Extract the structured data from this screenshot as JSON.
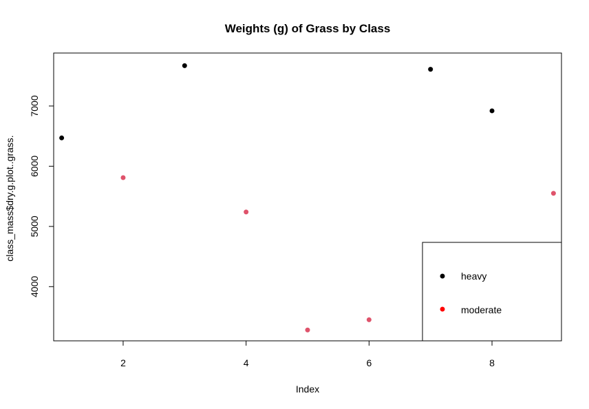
{
  "chart_data": {
    "type": "scatter",
    "title": "Weights (g) of Grass by Class",
    "xlabel": "Index",
    "ylabel": "class_mass$dry.g.plot..grass.",
    "xlim": [
      0.87,
      9.13
    ],
    "ylim": [
      3100,
      7880
    ],
    "x_ticks": [
      "2",
      "4",
      "6",
      "8"
    ],
    "y_ticks": [
      "4000",
      "5000",
      "6000",
      "7000"
    ],
    "series": [
      {
        "name": "heavy",
        "color": "#000000",
        "x": [
          1,
          3,
          7,
          8
        ],
        "y": [
          6470,
          7670,
          7610,
          6920
        ]
      },
      {
        "name": "moderate",
        "color": "#DF536B",
        "x": [
          2,
          4,
          5,
          6,
          9
        ],
        "y": [
          5810,
          5240,
          3280,
          3450,
          5550
        ]
      }
    ],
    "legend": {
      "position": "bottom-right",
      "entries": [
        {
          "label": "heavy",
          "color": "#000000"
        },
        {
          "label": "moderate",
          "color": "#FF0000"
        }
      ]
    },
    "grid": false
  }
}
